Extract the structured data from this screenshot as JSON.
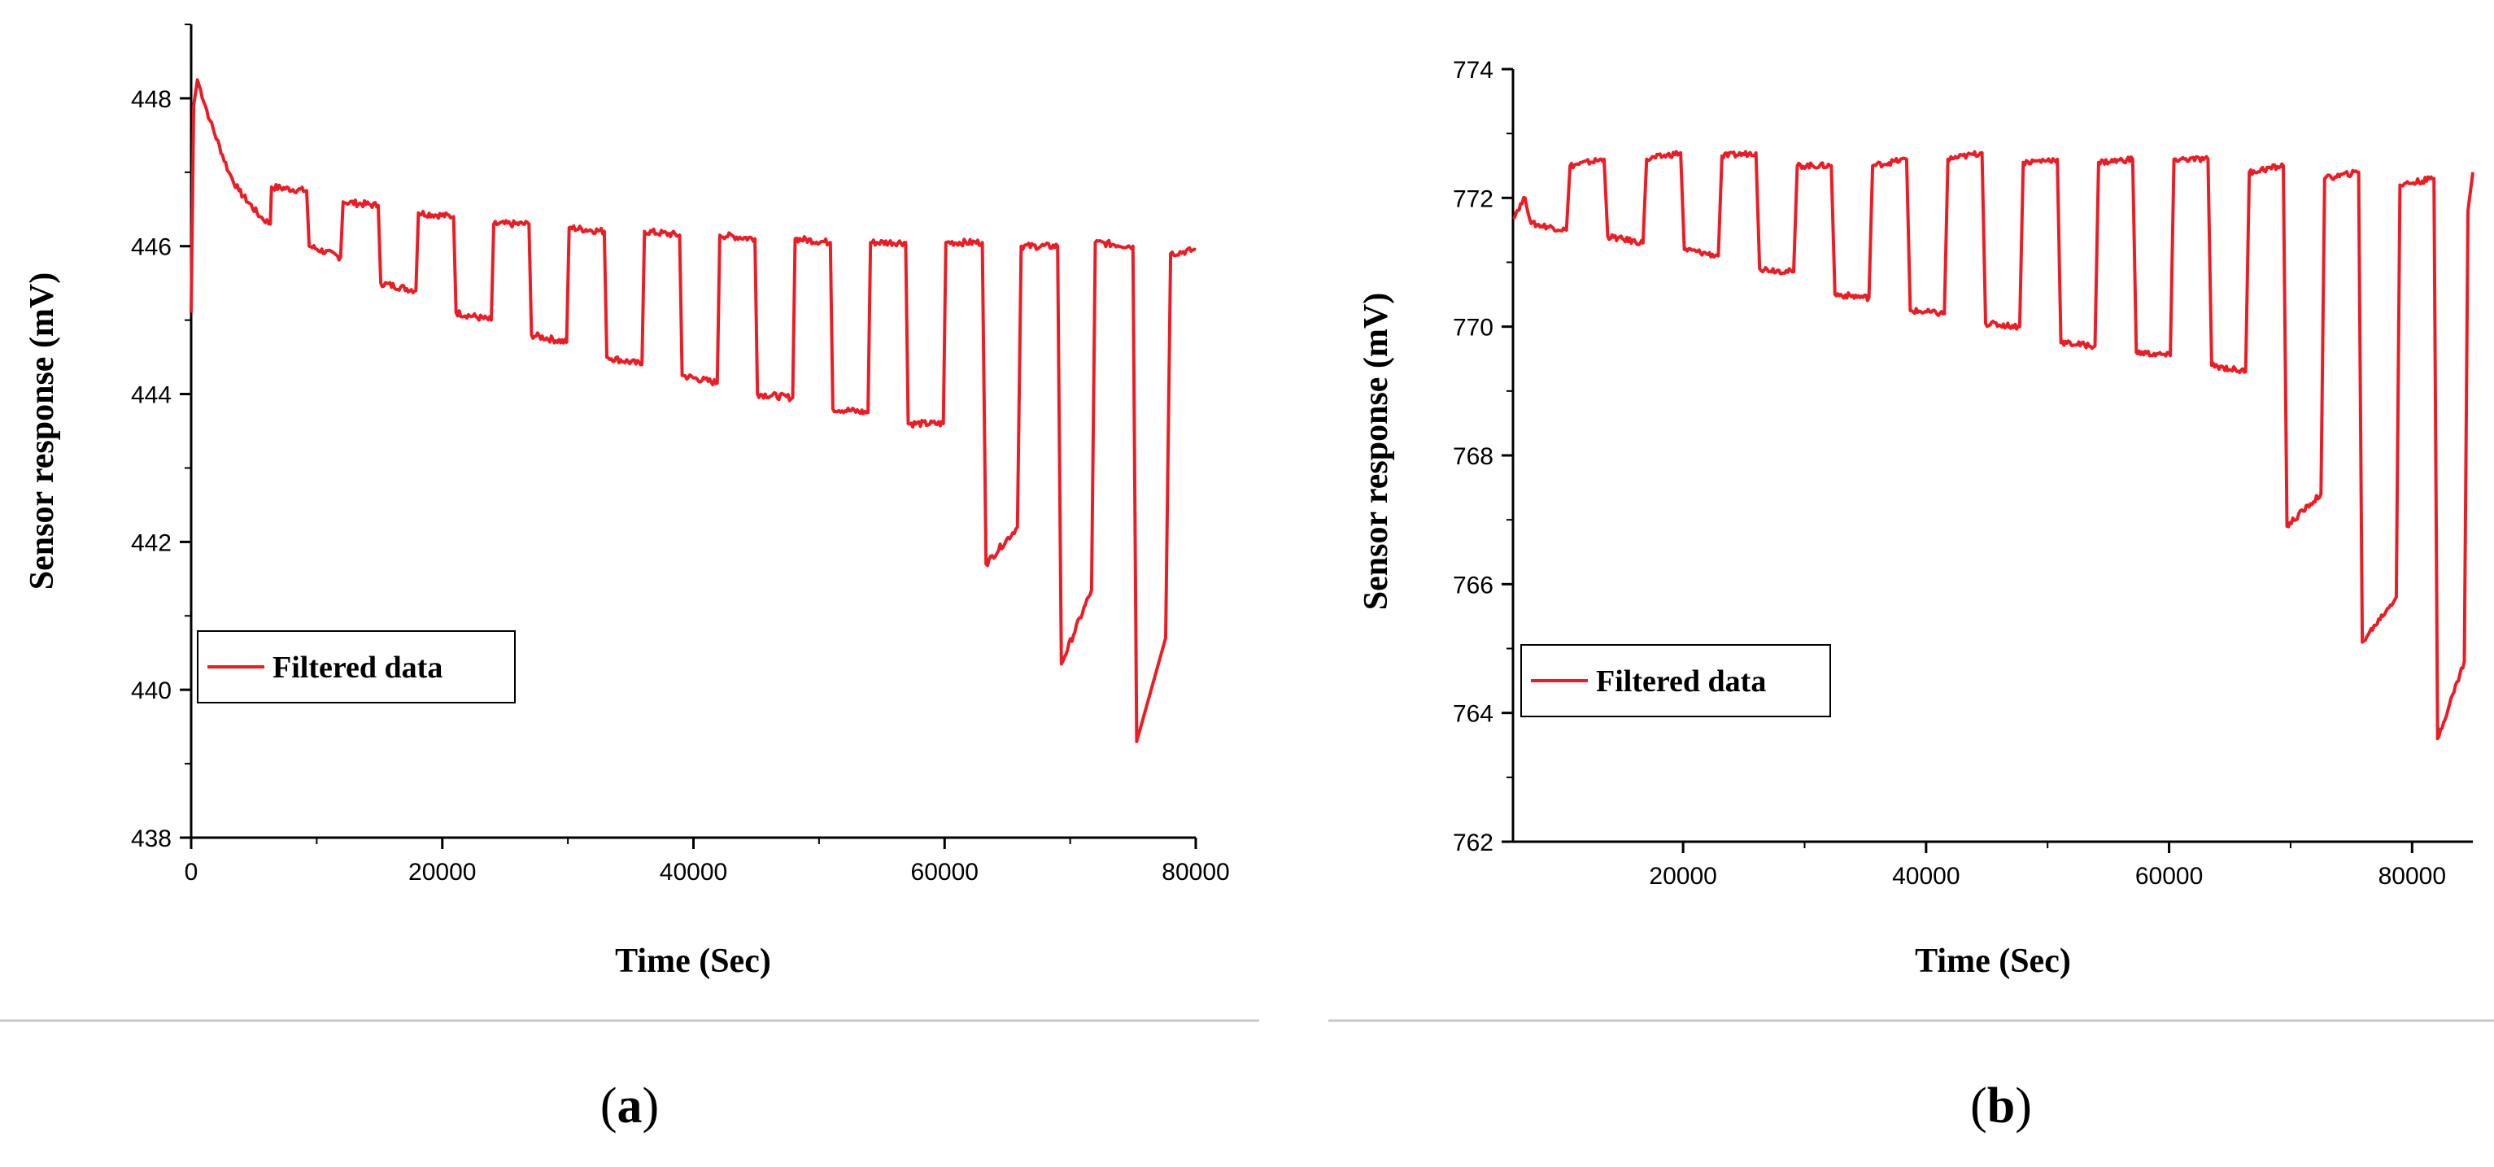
{
  "chart_data": [
    {
      "panel_label": "a",
      "type": "line",
      "xlabel": "Time (Sec)",
      "ylabel": "Sensor response (mV)",
      "xlim": [
        0,
        80000
      ],
      "ylim": [
        438,
        449
      ],
      "xticks": [
        0,
        20000,
        40000,
        60000,
        80000
      ],
      "yticks": [
        438,
        440,
        442,
        444,
        446,
        448
      ],
      "legend": {
        "label": "Filtered data",
        "position": "lower-left"
      },
      "series": [
        {
          "name": "Filtered data",
          "color": "#ed1c24",
          "points": [
            [
              0,
              445.1
            ],
            [
              200,
              447.9
            ],
            [
              500,
              448.25
            ],
            [
              1500,
              447.7
            ],
            [
              3000,
              447.0
            ],
            [
              3800,
              446.75
            ],
            [
              5500,
              446.4
            ],
            [
              6300,
              446.3
            ],
            [
              6400,
              446.8
            ],
            [
              9200,
              446.75
            ],
            [
              9400,
              446.0
            ],
            [
              11900,
              445.85
            ],
            [
              12100,
              446.6
            ],
            [
              14900,
              446.55
            ],
            [
              15100,
              445.5
            ],
            [
              17900,
              445.4
            ],
            [
              18100,
              446.45
            ],
            [
              20900,
              446.4
            ],
            [
              21100,
              445.1
            ],
            [
              23900,
              445.0
            ],
            [
              24100,
              446.3
            ],
            [
              26900,
              446.3
            ],
            [
              27100,
              444.8
            ],
            [
              29900,
              444.7
            ],
            [
              30100,
              446.25
            ],
            [
              32900,
              446.2
            ],
            [
              33100,
              444.5
            ],
            [
              35900,
              444.4
            ],
            [
              36100,
              446.2
            ],
            [
              38900,
              446.15
            ],
            [
              39100,
              444.25
            ],
            [
              41900,
              444.15
            ],
            [
              42100,
              446.15
            ],
            [
              44900,
              446.1
            ],
            [
              45100,
              444.0
            ],
            [
              47900,
              443.95
            ],
            [
              48100,
              446.1
            ],
            [
              50900,
              446.05
            ],
            [
              51100,
              443.8
            ],
            [
              53900,
              443.75
            ],
            [
              54100,
              446.05
            ],
            [
              56900,
              446.05
            ],
            [
              57100,
              443.6
            ],
            [
              59900,
              443.6
            ],
            [
              60100,
              446.05
            ],
            [
              63000,
              446.05
            ],
            [
              63300,
              441.7
            ],
            [
              65800,
              442.2
            ],
            [
              66100,
              446.0
            ],
            [
              69000,
              446.0
            ],
            [
              69300,
              440.35
            ],
            [
              71700,
              441.35
            ],
            [
              72000,
              446.05
            ],
            [
              75000,
              446.0
            ],
            [
              75300,
              439.3
            ],
            [
              77600,
              440.7
            ],
            [
              78000,
              445.9
            ],
            [
              80000,
              445.95
            ]
          ]
        }
      ]
    },
    {
      "panel_label": "b",
      "type": "line",
      "xlabel": "Time (Sec)",
      "ylabel": "Sensor response (mV)",
      "xlim": [
        6000,
        85000
      ],
      "ylim": [
        762,
        774
      ],
      "xticks": [
        20000,
        40000,
        60000,
        80000
      ],
      "yticks": [
        762,
        764,
        766,
        768,
        770,
        772,
        774
      ],
      "legend": {
        "label": "Filtered data",
        "position": "lower-left"
      },
      "series": [
        {
          "name": "Filtered data",
          "color": "#ed1c24",
          "points": [
            [
              6000,
              771.7
            ],
            [
              7000,
              772.0
            ],
            [
              7500,
              771.6
            ],
            [
              10400,
              771.5
            ],
            [
              10700,
              772.5
            ],
            [
              13500,
              772.6
            ],
            [
              13800,
              771.4
            ],
            [
              16700,
              771.3
            ],
            [
              17000,
              772.6
            ],
            [
              19800,
              772.7
            ],
            [
              20100,
              771.2
            ],
            [
              22900,
              771.1
            ],
            [
              23200,
              772.65
            ],
            [
              26000,
              772.7
            ],
            [
              26300,
              770.9
            ],
            [
              29100,
              770.85
            ],
            [
              29400,
              772.5
            ],
            [
              32200,
              772.5
            ],
            [
              32500,
              770.5
            ],
            [
              35300,
              770.45
            ],
            [
              35600,
              772.5
            ],
            [
              38400,
              772.6
            ],
            [
              38700,
              770.25
            ],
            [
              41500,
              770.2
            ],
            [
              41800,
              772.6
            ],
            [
              44600,
              772.7
            ],
            [
              44900,
              770.05
            ],
            [
              47700,
              770.0
            ],
            [
              48000,
              772.55
            ],
            [
              50800,
              772.6
            ],
            [
              51100,
              769.75
            ],
            [
              53900,
              769.7
            ],
            [
              54200,
              772.55
            ],
            [
              57000,
              772.6
            ],
            [
              57300,
              769.6
            ],
            [
              60100,
              769.55
            ],
            [
              60400,
              772.6
            ],
            [
              63200,
              772.6
            ],
            [
              63500,
              769.4
            ],
            [
              66300,
              769.3
            ],
            [
              66600,
              772.4
            ],
            [
              69400,
              772.5
            ],
            [
              69700,
              766.9
            ],
            [
              72500,
              767.4
            ],
            [
              72800,
              772.3
            ],
            [
              75600,
              772.4
            ],
            [
              75900,
              765.1
            ],
            [
              78700,
              765.8
            ],
            [
              79000,
              772.2
            ],
            [
              81800,
              772.3
            ],
            [
              82100,
              763.6
            ],
            [
              84300,
              764.8
            ],
            [
              84600,
              771.8
            ],
            [
              85000,
              772.4
            ]
          ]
        }
      ]
    }
  ],
  "captions": {
    "a": {
      "open": "(",
      "letter": "a",
      "close": ")"
    },
    "b": {
      "open": "(",
      "letter": "b",
      "close": ")"
    }
  },
  "colors": {
    "series": "#ed1c24",
    "axis": "#000000",
    "separator": "#c8c8c8"
  }
}
